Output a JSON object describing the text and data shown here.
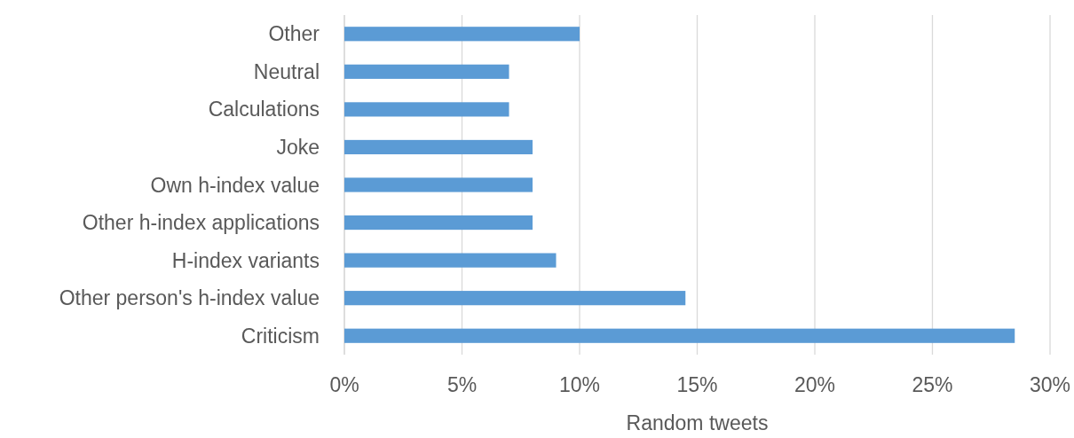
{
  "chart_data": {
    "type": "bar",
    "orientation": "horizontal",
    "xlabel": "Random tweets",
    "categories": [
      "Other",
      "Neutral",
      "Calculations",
      "Joke",
      "Own h-index value",
      "Other h-index applications",
      "H-index variants",
      "Other person's h-index value",
      "Criticism"
    ],
    "values": [
      10,
      7,
      7,
      8,
      8,
      8,
      9,
      14.5,
      28.5
    ],
    "color": "#5b9bd5",
    "xlim": [
      0,
      30
    ],
    "xticks": [
      {
        "value": 0,
        "label": "0%"
      },
      {
        "value": 5,
        "label": "5%"
      },
      {
        "value": 10,
        "label": "10%"
      },
      {
        "value": 15,
        "label": "15%"
      },
      {
        "value": 20,
        "label": "20%"
      },
      {
        "value": 25,
        "label": "25%"
      },
      {
        "value": 30,
        "label": "30%"
      }
    ],
    "grid": "x"
  }
}
